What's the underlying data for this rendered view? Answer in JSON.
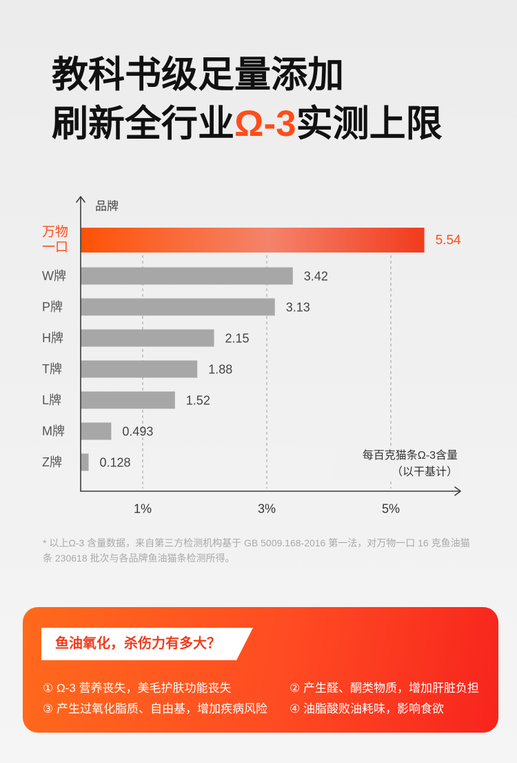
{
  "headline": {
    "line1": "教科书级足量添加",
    "line2_pre": "刷新全行业",
    "line2_highlight": "Ω-3",
    "line2_post": "实测上限"
  },
  "colors": {
    "accent": "#ff4d1a",
    "bar_gray": "#a7a7a7",
    "headline": "#111111",
    "card_orange": "#ff6a1c",
    "card_red": "#f7241d"
  },
  "chart_data": {
    "type": "bar",
    "orientation": "horizontal",
    "ylabel": "品牌",
    "xlabel": "每百克猫条Ω-3含量",
    "xlabel_note": "（以干基计）",
    "categories": [
      "万物一口",
      "W牌",
      "P牌",
      "H牌",
      "T牌",
      "L牌",
      "M牌",
      "Z牌"
    ],
    "values": [
      5.54,
      3.42,
      3.13,
      2.15,
      1.88,
      1.52,
      0.493,
      0.128
    ],
    "highlight_index": 0,
    "xticks": [
      1,
      3,
      5
    ],
    "xtick_labels": [
      "1%",
      "3%",
      "5%"
    ],
    "xlim": [
      0,
      6
    ],
    "grid": true,
    "legend": false
  },
  "footnote": "* 以上Ω-3 含量数据，来自第三方检测机构基于 GB 5009.168-2016 第一法，对万物一口 16 克鱼油猫条 230618 批次与各品牌鱼油猫条检测所得。",
  "callout": {
    "tag": "鱼油氧化，杀伤力有多大？",
    "items": [
      "① Ω-3 营养丧失，美毛护肤功能丧失",
      "② 产生醛、酮类物质，增加肝脏负担",
      "③ 产生过氧化脂质、自由基，增加疾病风险",
      "④ 油脂酸败油耗味，影响食欲"
    ]
  }
}
